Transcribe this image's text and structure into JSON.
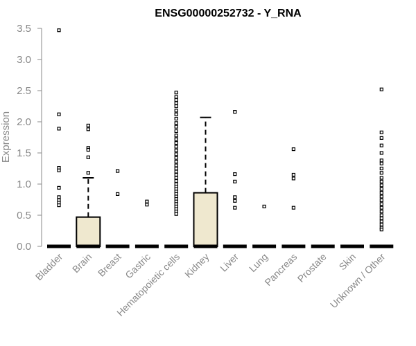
{
  "chart_data": {
    "type": "boxplot",
    "title": "ENSG00000252732 - Y_RNA",
    "ylabel": "Expression",
    "xlabel": "",
    "ylim": [
      0,
      3.5
    ],
    "yticks": [
      "0.0",
      "0.5",
      "1.0",
      "1.5",
      "2.0",
      "2.5",
      "3.0",
      "3.5"
    ],
    "grid": false,
    "box_fill": "#efe8cf",
    "categories": [
      {
        "name": "Bladder",
        "q1": 0,
        "median": 0,
        "q3": 0,
        "whisker_low": 0,
        "whisker_high": 0,
        "outliers": [
          3.47,
          2.12,
          1.89,
          1.26,
          1.22,
          0.94,
          0.79,
          0.74,
          0.7,
          0.66
        ]
      },
      {
        "name": "Brain",
        "q1": 0,
        "median": 0,
        "q3": 0.47,
        "whisker_low": 0,
        "whisker_high": 1.1,
        "outliers": [
          1.94,
          1.88,
          1.58,
          1.55,
          1.43,
          1.18
        ]
      },
      {
        "name": "Breast",
        "q1": 0,
        "median": 0,
        "q3": 0,
        "whisker_low": 0,
        "whisker_high": 0,
        "outliers": [
          1.21,
          0.84
        ]
      },
      {
        "name": "Gastric",
        "q1": 0,
        "median": 0,
        "q3": 0,
        "whisker_low": 0,
        "whisker_high": 0,
        "outliers": [
          0.72,
          0.67
        ]
      },
      {
        "name": "Hematopoietic cells",
        "q1": 0,
        "median": 0,
        "q3": 0,
        "whisker_low": 0,
        "whisker_high": 0,
        "outliers": [
          2.47,
          2.4,
          2.35,
          2.3,
          2.25,
          2.18,
          2.12,
          2.05,
          1.98,
          1.92,
          1.85,
          1.78,
          1.72,
          1.66,
          1.6,
          1.54,
          1.48,
          1.42,
          1.36,
          1.3,
          1.25,
          1.2,
          1.15,
          1.1,
          1.05,
          1.0,
          0.96,
          0.92,
          0.88,
          0.84,
          0.8,
          0.76,
          0.72,
          0.68,
          0.64,
          0.6,
          0.56,
          0.52
        ]
      },
      {
        "name": "Kidney",
        "q1": 0,
        "median": 0,
        "q3": 0.86,
        "whisker_low": 0,
        "whisker_high": 2.07,
        "outliers": []
      },
      {
        "name": "Liver",
        "q1": 0,
        "median": 0,
        "q3": 0,
        "whisker_low": 0,
        "whisker_high": 0,
        "outliers": [
          2.16,
          1.16,
          1.04,
          0.79,
          0.73,
          0.62
        ]
      },
      {
        "name": "Lung",
        "q1": 0,
        "median": 0,
        "q3": 0,
        "whisker_low": 0,
        "whisker_high": 0,
        "outliers": [
          0.64
        ]
      },
      {
        "name": "Pancreas",
        "q1": 0,
        "median": 0,
        "q3": 0,
        "whisker_low": 0,
        "whisker_high": 0,
        "outliers": [
          1.56,
          1.15,
          1.09,
          0.62
        ]
      },
      {
        "name": "Prostate",
        "q1": 0,
        "median": 0,
        "q3": 0,
        "whisker_low": 0,
        "whisker_high": 0,
        "outliers": []
      },
      {
        "name": "Skin",
        "q1": 0,
        "median": 0,
        "q3": 0,
        "whisker_low": 0,
        "whisker_high": 0,
        "outliers": []
      },
      {
        "name": "Unknown / Other",
        "q1": 0,
        "median": 0,
        "q3": 0,
        "whisker_low": 0,
        "whisker_high": 0,
        "outliers": [
          2.52,
          1.83,
          1.74,
          1.62,
          1.5,
          1.38,
          1.33,
          1.25,
          1.18,
          1.1,
          1.04,
          0.98,
          0.92,
          0.86,
          0.8,
          0.74,
          0.68,
          0.62,
          0.56,
          0.5,
          0.45,
          0.4,
          0.35,
          0.3,
          0.27
        ]
      }
    ]
  }
}
